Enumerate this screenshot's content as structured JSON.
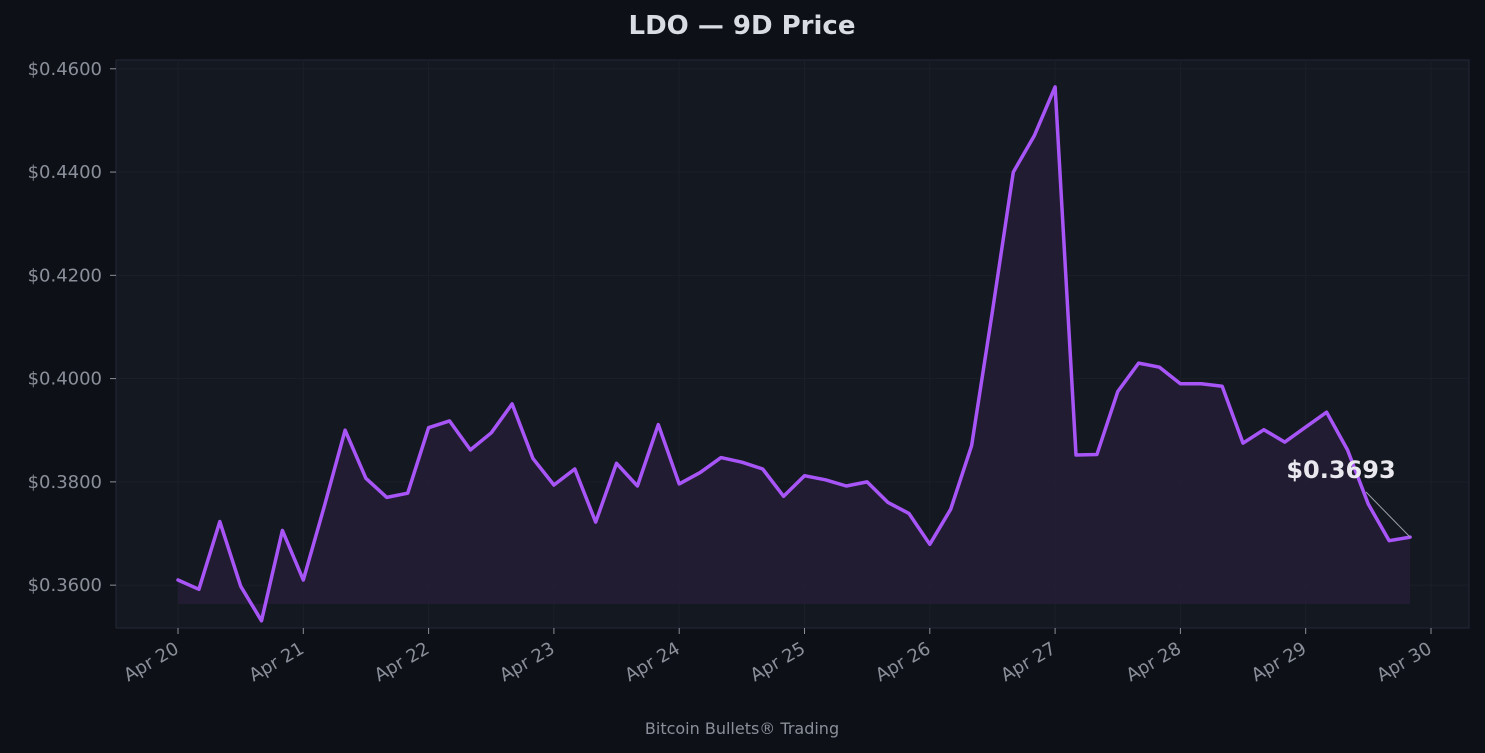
{
  "chart_data": {
    "type": "area",
    "title": "LDO — 9D Price",
    "xlabel": "",
    "ylabel": "",
    "ylim": [
      0.3517,
      0.4617
    ],
    "yticks": [
      0.36,
      0.38,
      0.4,
      0.42,
      0.44,
      0.46
    ],
    "ytick_labels": [
      "$0.3600",
      "$0.3800",
      "$0.4000",
      "$0.4200",
      "$0.4400",
      "$0.4600"
    ],
    "xticks": [
      "Apr 20",
      "Apr 21",
      "Apr 22",
      "Apr 23",
      "Apr 24",
      "Apr 25",
      "Apr 26",
      "Apr 27",
      "Apr 28",
      "Apr 29",
      "Apr 30"
    ],
    "x_start": "Apr 20",
    "step_hours": 4,
    "grid": true,
    "series": [
      {
        "color": "#a855f7",
        "values": [
          0.361,
          0.3592,
          0.3723,
          0.3598,
          0.3531,
          0.3706,
          0.361,
          0.3752,
          0.39,
          0.3807,
          0.377,
          0.3778,
          0.3905,
          0.3918,
          0.3862,
          0.3895,
          0.3951,
          0.3845,
          0.3794,
          0.3825,
          0.3722,
          0.3836,
          0.3792,
          0.3911,
          0.3796,
          0.3818,
          0.3847,
          0.3838,
          0.3825,
          0.3772,
          0.3812,
          0.3804,
          0.3792,
          0.38,
          0.376,
          0.3739,
          0.3679,
          0.3747,
          0.387,
          0.413,
          0.44,
          0.447,
          0.4565,
          0.3852,
          0.3853,
          0.3975,
          0.403,
          0.4022,
          0.399,
          0.399,
          0.3985,
          0.3875,
          0.3901,
          0.3877,
          0.3906,
          0.3935,
          0.3862,
          0.3757,
          0.3686,
          0.3693
        ]
      }
    ],
    "last_value": 0.3693,
    "last_value_label": "$0.3693"
  },
  "footer": "Bitcoin Bullets® Trading",
  "colors": {
    "background": "#0d1017",
    "plot_background": "#141820",
    "line": "#a855f7",
    "fill": "#241d36",
    "text": "#8a8f99",
    "title": "#d9dce3"
  }
}
